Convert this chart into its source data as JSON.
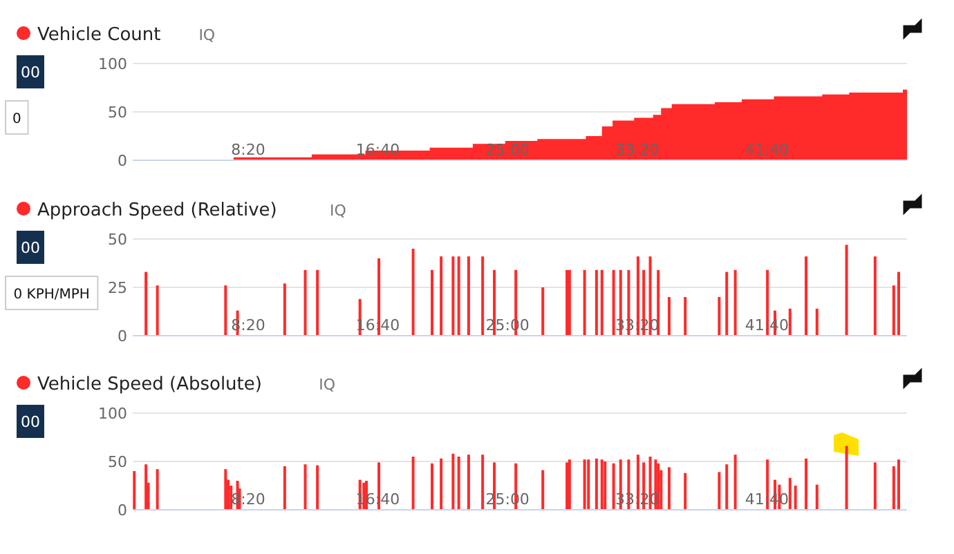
{
  "chart_data": [
    {
      "type": "area",
      "title": "Vehicle Count",
      "subtitle": "IQ",
      "color": "#ff2a2a",
      "annotations": [
        "00",
        "0"
      ],
      "x": [
        81,
        444,
        745,
        952,
        1200,
        1366,
        1491,
        1615,
        1729,
        1802,
        1864,
        1905,
        1988,
        2061,
        2092,
        2133,
        2299,
        2403,
        2527,
        2713,
        2817,
        3024,
        3040
      ],
      "values": [
        0,
        3,
        6,
        10,
        13,
        17,
        20,
        22,
        22,
        25,
        35,
        41,
        44,
        47,
        54,
        58,
        60,
        63,
        66,
        68,
        70,
        73,
        73
      ],
      "xlim": [
        55,
        3040
      ],
      "xticks": [
        {
          "value": 500,
          "label": "8:20"
        },
        {
          "value": 1000,
          "label": "16:40"
        },
        {
          "value": 1500,
          "label": "25:00"
        },
        {
          "value": 2000,
          "label": "33:20"
        },
        {
          "value": 2500,
          "label": "41:40"
        }
      ],
      "ylim": [
        0,
        100
      ],
      "yticks": [
        0,
        50,
        100
      ],
      "grid": "y"
    },
    {
      "type": "bar",
      "title": "Approach Speed (Relative)",
      "subtitle": "IQ",
      "color": "#ff2a2a",
      "annotations": [
        "00",
        "0 KPH/MPH"
      ],
      "x": [
        106,
        150,
        413,
        459,
        641,
        720,
        767,
        931,
        1004,
        1136,
        1209,
        1244,
        1290,
        1312,
        1350,
        1404,
        1449,
        1532,
        1636,
        1729,
        1739,
        1797,
        1843,
        1864,
        1909,
        1936,
        1967,
        2003,
        2025,
        2050,
        2081,
        2123,
        2185,
        2316,
        2345,
        2378,
        2502,
        2531,
        2589,
        2651,
        2693,
        2807,
        2917,
        2989,
        3008
      ],
      "values": [
        33,
        26,
        26,
        13,
        27,
        34,
        34,
        19,
        40,
        45,
        34,
        41,
        41,
        41,
        41,
        41,
        34,
        34,
        25,
        34,
        34,
        34,
        34,
        34,
        34,
        34,
        34,
        41,
        34,
        41,
        34,
        20,
        20,
        20,
        33,
        34,
        34,
        13,
        14,
        41,
        14,
        47,
        41,
        26,
        33
      ],
      "xlim": [
        55,
        3040
      ],
      "xticks": [
        {
          "value": 500,
          "label": "8:20"
        },
        {
          "value": 1000,
          "label": "16:40"
        },
        {
          "value": 1500,
          "label": "25:00"
        },
        {
          "value": 2000,
          "label": "33:20"
        },
        {
          "value": 2500,
          "label": "41:40"
        }
      ],
      "ylim": [
        0,
        50
      ],
      "yticks": [
        0,
        25,
        50
      ],
      "grid": "y"
    },
    {
      "type": "bar",
      "title": "Vehicle Speed (Absolute)",
      "subtitle": "IQ",
      "color": "#ff2a2a",
      "annotations": [
        "00"
      ],
      "x": [
        61,
        106,
        115,
        150,
        413,
        423,
        434,
        459,
        467,
        641,
        720,
        767,
        931,
        946,
        956,
        1004,
        1136,
        1209,
        1244,
        1290,
        1312,
        1350,
        1404,
        1449,
        1532,
        1636,
        1729,
        1739,
        1797,
        1812,
        1843,
        1864,
        1876,
        1909,
        1936,
        1967,
        2003,
        2025,
        2050,
        2071,
        2081,
        2092,
        2123,
        2185,
        2316,
        2345,
        2378,
        2502,
        2531,
        2548,
        2589,
        2610,
        2651,
        2693,
        2807,
        2917,
        2989,
        3008
      ],
      "values": [
        40,
        47,
        28,
        42,
        42,
        31,
        25,
        30,
        22,
        45,
        47,
        46,
        31,
        28,
        30,
        49,
        55,
        48,
        53,
        58,
        55,
        57,
        57,
        49,
        48,
        41,
        49,
        52,
        52,
        52,
        53,
        52,
        50,
        48,
        52,
        52,
        57,
        49,
        55,
        52,
        48,
        41,
        44,
        38,
        39,
        47,
        57,
        52,
        31,
        26,
        33,
        25,
        53,
        26,
        66,
        49,
        45,
        52
      ],
      "xlim": [
        55,
        3040
      ],
      "xticks": [
        {
          "value": 500,
          "label": "8:20"
        },
        {
          "value": 1000,
          "label": "16:40"
        },
        {
          "value": 1500,
          "label": "25:00"
        },
        {
          "value": 2000,
          "label": "33:20"
        },
        {
          "value": 2500,
          "label": "41:40"
        }
      ],
      "ylim": [
        0,
        100
      ],
      "yticks": [
        0,
        50,
        100
      ],
      "grid": "y"
    }
  ]
}
